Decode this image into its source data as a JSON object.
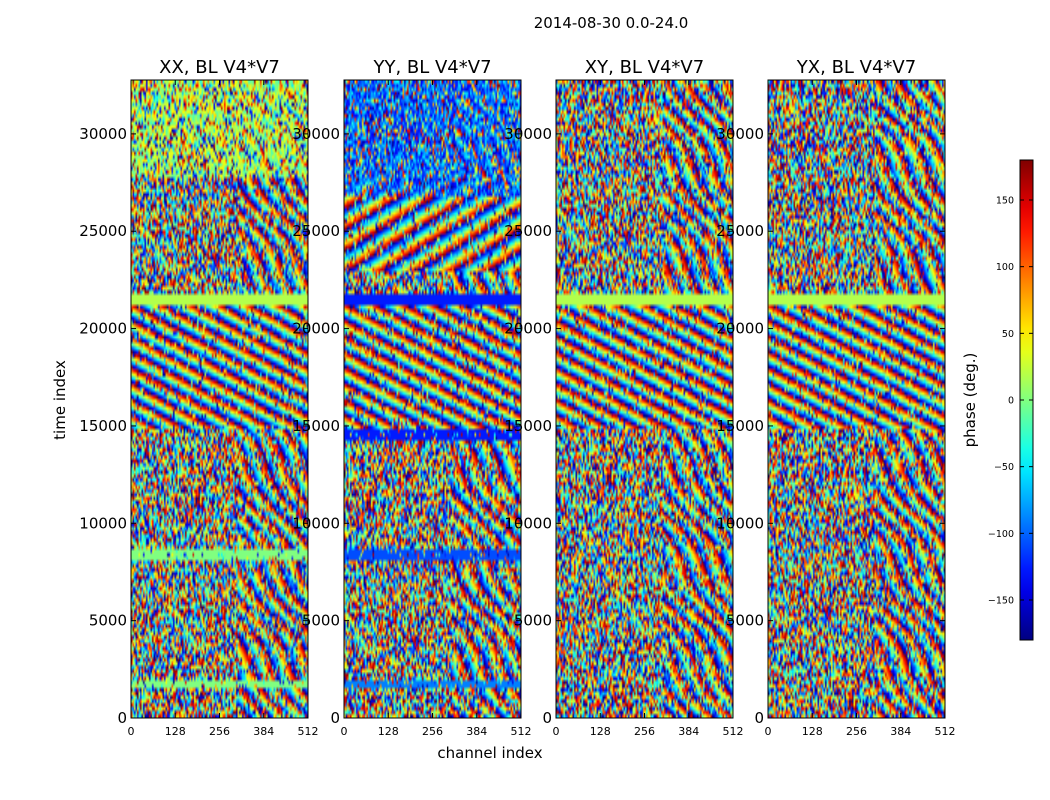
{
  "figure": {
    "suptitle": "2014-08-30 0.0-24.0",
    "ylabel": "time index",
    "xlabel": "channel index"
  },
  "chart_data": {
    "type": "heatmap",
    "suptitle": "2014-08-30 0.0-24.0",
    "xlabel": "channel index",
    "ylabel": "time index",
    "xlim": [
      0,
      512
    ],
    "ylim": [
      0,
      32768
    ],
    "x_ticks": [
      0,
      128,
      256,
      384,
      512
    ],
    "y_ticks": [
      0,
      5000,
      10000,
      15000,
      20000,
      25000,
      30000
    ],
    "panels": [
      {
        "title": "XX, BL V4*V7",
        "polarization": "XX",
        "baseline": "V4*V7"
      },
      {
        "title": "YY, BL V4*V7",
        "polarization": "YY",
        "baseline": "V4*V7"
      },
      {
        "title": "XY, BL V4*V7",
        "polarization": "XY",
        "baseline": "V4*V7"
      },
      {
        "title": "YX, BL V4*V7",
        "polarization": "YX",
        "baseline": "V4*V7"
      }
    ],
    "colorbar": {
      "label": "phase (deg.)",
      "colormap": "jet",
      "vmin": -180,
      "vmax": 180,
      "ticks": [
        -150,
        -100,
        -50,
        0,
        50,
        100,
        150
      ],
      "tick_labels": [
        "−150",
        "−100",
        "−50",
        "0",
        "50",
        "100",
        "150"
      ]
    }
  }
}
